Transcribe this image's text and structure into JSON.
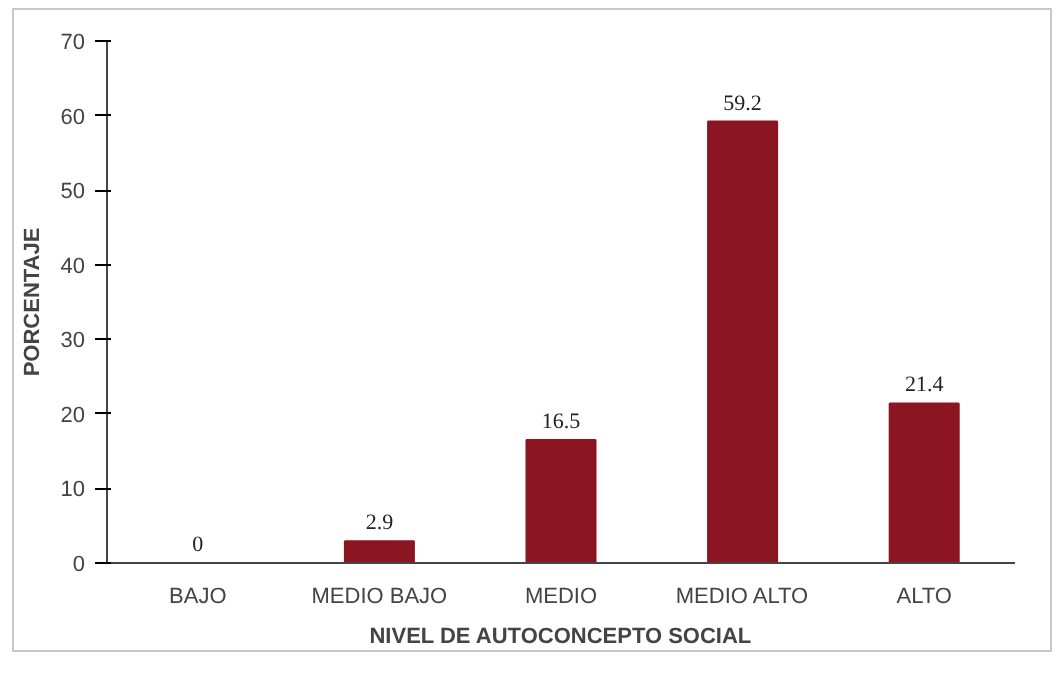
{
  "chart_data": {
    "type": "bar",
    "xlabel": "NIVEL DE AUTOCONCEPTO SOCIAL",
    "ylabel": "PORCENTAJE",
    "categories": [
      "BAJO",
      "MEDIO BAJO",
      "MEDIO",
      "MEDIO ALTO",
      "ALTO"
    ],
    "values": [
      0,
      2.9,
      16.5,
      59.2,
      21.4
    ],
    "color": "#8b1520",
    "ylim": [
      0,
      70
    ],
    "yticks": [
      0,
      10,
      20,
      30,
      40,
      50,
      60,
      70
    ],
    "grid": false,
    "data_labels": true
  }
}
